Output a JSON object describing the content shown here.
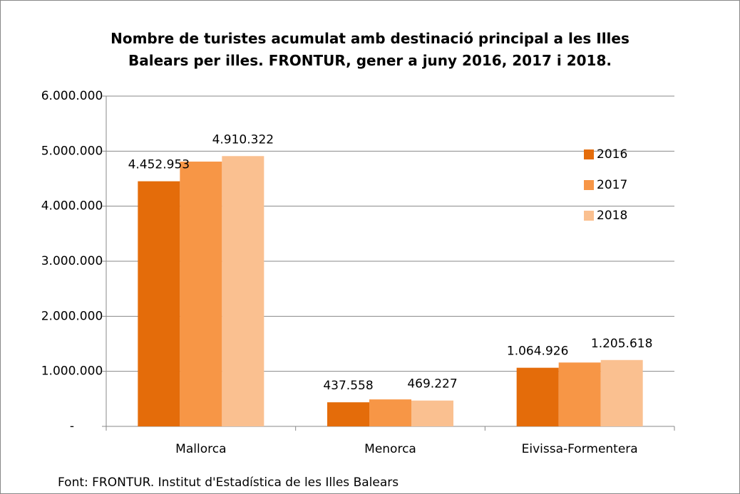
{
  "chart_data": {
    "type": "bar",
    "title": "Nombre de turistes acumulat amb destinació principal a les Illes\nBalears per illes. FRONTUR,  gener a juny 2016, 2017 i 2018.",
    "categories": [
      "Mallorca",
      "Menorca",
      "Eivissa-Formentera"
    ],
    "series": [
      {
        "name": "2016",
        "color": "#e46c0a",
        "values": [
          4452953,
          437558,
          1064926
        ],
        "value_labels": [
          "4.452.953",
          "437.558",
          "1.064.926"
        ]
      },
      {
        "name": "2017",
        "color": "#f79646",
        "values": [
          4810000,
          490000,
          1160000
        ],
        "value_labels": [
          null,
          null,
          null
        ]
      },
      {
        "name": "2018",
        "color": "#fac090",
        "values": [
          4910322,
          469227,
          1205618
        ],
        "value_labels": [
          "4.910.322",
          "469.227",
          "1.205.618"
        ]
      }
    ],
    "ylim": [
      0,
      6000000
    ],
    "yticks": [
      {
        "value": 0,
        "label": "-"
      },
      {
        "value": 1000000,
        "label": "1.000.000"
      },
      {
        "value": 2000000,
        "label": "2.000.000"
      },
      {
        "value": 3000000,
        "label": "3.000.000"
      },
      {
        "value": 4000000,
        "label": "4.000.000"
      },
      {
        "value": 5000000,
        "label": "5.000.000"
      },
      {
        "value": 6000000,
        "label": "6.000.000"
      }
    ],
    "grid": true,
    "legend": "right",
    "source": "Font: FRONTUR. Institut d'Estadística de les Illes Balears"
  }
}
